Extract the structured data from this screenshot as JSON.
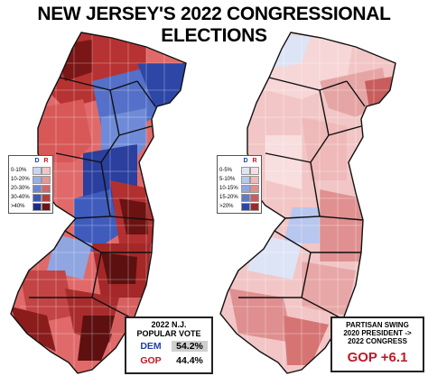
{
  "title": "NEW JERSEY'S 2022 CONGRESSIONAL ELECTIONS",
  "left_map": {
    "legend": {
      "col_dem": "D",
      "col_rep": "R",
      "rows": [
        {
          "label": "0-10%",
          "dem": "#c9d4f0",
          "rep": "#f2c4c4"
        },
        {
          "label": "10-20%",
          "dem": "#9aaee2",
          "rep": "#e79595"
        },
        {
          "label": "20-30%",
          "dem": "#6a86d0",
          "rep": "#d66565"
        },
        {
          "label": "30-40%",
          "dem": "#3a58b6",
          "rep": "#b83a3a"
        },
        {
          "label": ">40%",
          "dem": "#1a2c8a",
          "rep": "#6e1414"
        }
      ]
    }
  },
  "right_map": {
    "legend": {
      "col_dem": "D",
      "col_rep": "R",
      "rows": [
        {
          "label": "0-5%",
          "dem": "#dde4f6",
          "rep": "#f8dede"
        },
        {
          "label": "5-10%",
          "dem": "#b8c7ee",
          "rep": "#efb9b9"
        },
        {
          "label": "10-15%",
          "dem": "#8ea5e0",
          "rep": "#e08e8e"
        },
        {
          "label": "15-20%",
          "dem": "#5d79c8",
          "rep": "#c85d5d"
        },
        {
          "label": ">20%",
          "dem": "#2a45a6",
          "rep": "#9a2a2a"
        }
      ]
    }
  },
  "popular_vote": {
    "heading_line1": "2022 N.J.",
    "heading_line2": "POPULAR VOTE",
    "dem_label": "DEM",
    "dem_pct": "54.2%",
    "gop_label": "GOP",
    "gop_pct": "44.4%",
    "dem_color": "#1f3fa8",
    "gop_color": "#c0182a"
  },
  "swing": {
    "heading_line1": "PARTISAN SWING",
    "heading_line2": "2020 PRESIDENT ->",
    "heading_line3": "2022 CONGRESS",
    "value": "GOP +6.1"
  }
}
